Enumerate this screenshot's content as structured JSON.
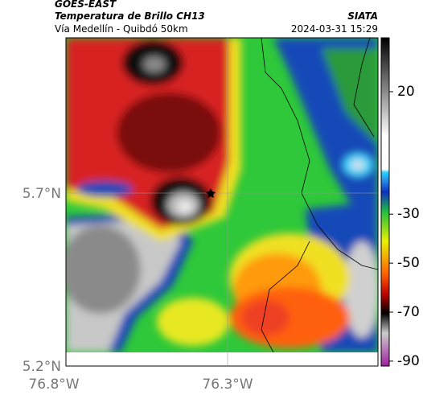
{
  "header": {
    "title": "GOES-EAST",
    "subtitle": "Temperatura de Brillo CH13",
    "source": "SIATA",
    "location": "Vía Medellín - Quibdó 50km",
    "datetime": "2024-03-31 15:29"
  },
  "map_axes": {
    "lat_labels": [
      "5.7°N",
      "5.2°N"
    ],
    "lon_labels": [
      "76.8°W",
      "76.3°W"
    ]
  },
  "colorbar": {
    "range": [
      -92,
      42
    ],
    "ticks": [
      20,
      -30,
      -50,
      -70,
      -90
    ]
  }
}
